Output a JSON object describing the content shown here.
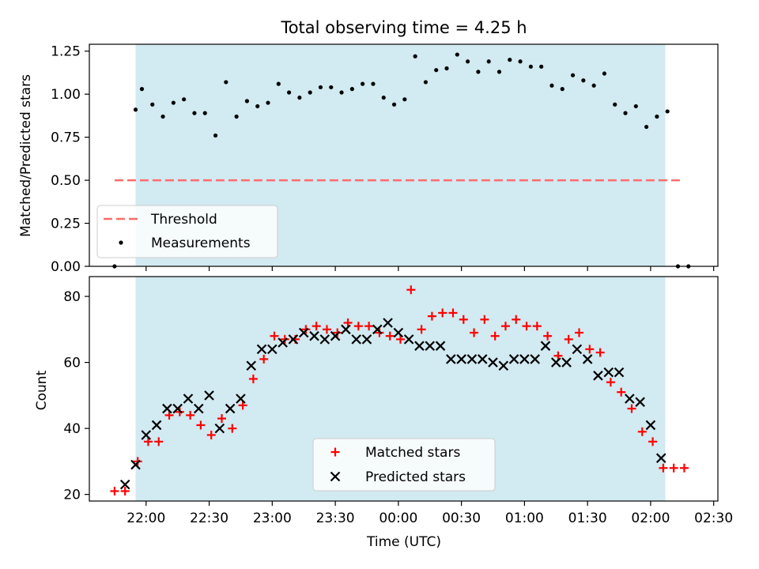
{
  "figure": {
    "title": "Total observing time = 4.25 h",
    "xlabel": "Time (UTC)"
  },
  "colors": {
    "shade": "#add8e6",
    "threshold": "#ff6b6b",
    "matched": "#ff0000",
    "predicted": "#000000"
  },
  "chart_data": [
    {
      "type": "scatter",
      "panel": "top",
      "title": "Total observing time = 4.25 h",
      "ylabel": "Matched/Predicted stars",
      "ylim": [
        0,
        1.29
      ],
      "yticks": [
        0.0,
        0.25,
        0.5,
        0.75,
        1.0,
        1.25
      ],
      "ytick_labels": [
        "0.00",
        "0.25",
        "0.50",
        "0.75",
        "1.00",
        "1.25"
      ],
      "shaded_region": {
        "start": "21:55",
        "end": "02:07"
      },
      "threshold": {
        "name": "Threshold",
        "value": 0.5,
        "x_range": [
          "21:45",
          "02:15"
        ],
        "style": "dashed"
      },
      "legend": {
        "entries": [
          "Threshold",
          "Measurements"
        ],
        "placement": "lower-left"
      },
      "series": [
        {
          "name": "Measurements",
          "marker": "dot",
          "x": [
            "21:45",
            "21:55",
            "21:58",
            "22:03",
            "22:08",
            "22:13",
            "22:18",
            "22:23",
            "22:28",
            "22:33",
            "22:38",
            "22:43",
            "22:48",
            "22:53",
            "22:58",
            "23:03",
            "23:08",
            "23:13",
            "23:18",
            "23:23",
            "23:28",
            "23:33",
            "23:38",
            "23:43",
            "23:48",
            "23:53",
            "23:58",
            "00:03",
            "00:08",
            "00:13",
            "00:18",
            "00:23",
            "00:28",
            "00:33",
            "00:38",
            "00:43",
            "00:48",
            "00:53",
            "00:58",
            "01:03",
            "01:08",
            "01:13",
            "01:18",
            "01:23",
            "01:28",
            "01:33",
            "01:38",
            "01:43",
            "01:48",
            "01:53",
            "01:58",
            "02:03",
            "02:08",
            "02:13",
            "02:18"
          ],
          "y": [
            0.0,
            0.91,
            1.03,
            0.94,
            0.87,
            0.95,
            0.97,
            0.89,
            0.89,
            0.76,
            1.07,
            0.87,
            0.96,
            0.93,
            0.95,
            1.06,
            1.01,
            0.98,
            1.01,
            1.04,
            1.04,
            1.01,
            1.03,
            1.06,
            1.06,
            0.98,
            0.94,
            0.97,
            1.22,
            1.07,
            1.14,
            1.15,
            1.23,
            1.19,
            1.13,
            1.19,
            1.13,
            1.2,
            1.19,
            1.16,
            1.16,
            1.05,
            1.03,
            1.11,
            1.08,
            1.05,
            1.12,
            0.94,
            0.89,
            0.93,
            0.81,
            0.87,
            0.9,
            0.0,
            0.0
          ]
        }
      ]
    },
    {
      "type": "scatter",
      "panel": "bottom",
      "xlabel": "Time (UTC)",
      "ylabel": "Count",
      "xlim": [
        "21:33",
        "02:32"
      ],
      "ylim": [
        18,
        86
      ],
      "yticks": [
        20,
        40,
        60,
        80
      ],
      "xtick_labels": [
        "22:00",
        "22:30",
        "23:00",
        "23:30",
        "00:00",
        "00:30",
        "01:00",
        "01:30",
        "02:00",
        "02:30"
      ],
      "shaded_region": {
        "start": "21:55",
        "end": "02:07"
      },
      "legend": {
        "entries": [
          "Matched stars",
          "Predicted stars"
        ],
        "placement": "lower-center"
      },
      "series": [
        {
          "name": "Matched stars",
          "marker": "plus",
          "x": [
            "21:45",
            "21:50",
            "21:56",
            "22:01",
            "22:06",
            "22:11",
            "22:16",
            "22:21",
            "22:26",
            "22:31",
            "22:36",
            "22:41",
            "22:46",
            "22:51",
            "22:56",
            "23:01",
            "23:06",
            "23:11",
            "23:16",
            "23:21",
            "23:26",
            "23:31",
            "23:36",
            "23:41",
            "23:46",
            "23:51",
            "23:56",
            "00:01",
            "00:06",
            "00:11",
            "00:16",
            "00:21",
            "00:26",
            "00:31",
            "00:36",
            "00:41",
            "00:46",
            "00:51",
            "00:56",
            "01:01",
            "01:06",
            "01:11",
            "01:16",
            "01:21",
            "01:26",
            "01:31",
            "01:36",
            "01:41",
            "01:46",
            "01:51",
            "01:56",
            "02:01",
            "02:06",
            "02:11",
            "02:16"
          ],
          "y": [
            21,
            21,
            30,
            36,
            36,
            44,
            45,
            44,
            41,
            38,
            43,
            40,
            47,
            55,
            61,
            68,
            67,
            67,
            70,
            71,
            70,
            69,
            72,
            71,
            71,
            69,
            68,
            67,
            82,
            70,
            74,
            75,
            75,
            73,
            69,
            73,
            68,
            71,
            73,
            71,
            71,
            68,
            62,
            67,
            69,
            64,
            63,
            54,
            51,
            46,
            39,
            36,
            28,
            28,
            28
          ]
        },
        {
          "name": "Predicted stars",
          "marker": "x",
          "x": [
            "21:50",
            "21:55",
            "22:00",
            "22:05",
            "22:10",
            "22:15",
            "22:20",
            "22:25",
            "22:30",
            "22:35",
            "22:40",
            "22:45",
            "22:50",
            "22:55",
            "23:00",
            "23:05",
            "23:10",
            "23:15",
            "23:20",
            "23:25",
            "23:30",
            "23:35",
            "23:40",
            "23:45",
            "23:50",
            "23:55",
            "00:00",
            "00:05",
            "00:10",
            "00:15",
            "00:20",
            "00:25",
            "00:30",
            "00:35",
            "00:40",
            "00:45",
            "00:50",
            "00:55",
            "01:00",
            "01:05",
            "01:10",
            "01:15",
            "01:20",
            "01:25",
            "01:30",
            "01:35",
            "01:40",
            "01:45",
            "01:50",
            "01:55",
            "02:00",
            "02:05"
          ],
          "y": [
            23,
            29,
            38,
            41,
            46,
            46,
            49,
            46,
            50,
            40,
            46,
            49,
            59,
            64,
            64,
            66,
            67,
            69,
            68,
            67,
            68,
            70,
            67,
            67,
            70,
            72,
            69,
            67,
            65,
            65,
            65,
            61,
            61,
            61,
            61,
            60,
            59,
            61,
            61,
            61,
            65,
            60,
            60,
            64,
            61,
            56,
            57,
            57,
            49,
            48,
            41,
            31
          ]
        }
      ]
    }
  ]
}
